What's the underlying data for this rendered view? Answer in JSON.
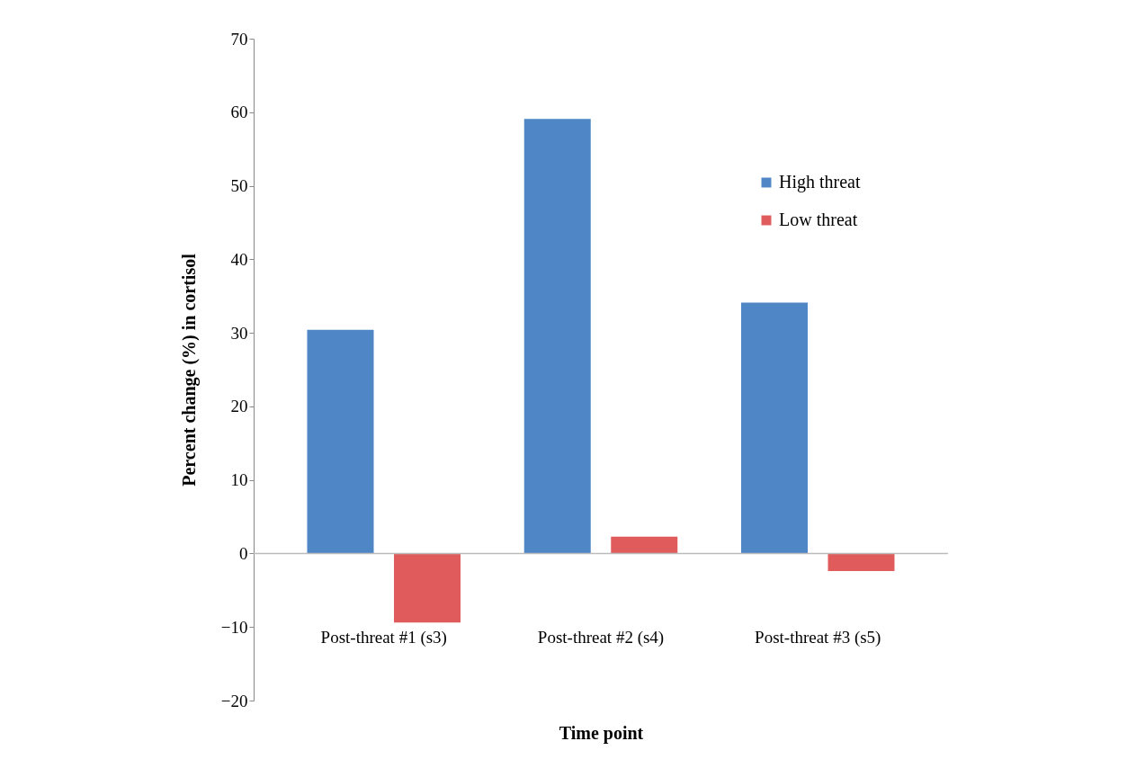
{
  "chart_data": {
    "type": "bar",
    "xlabel": "Time point",
    "ylabel": "Percent change (%) in cortisol",
    "categories": [
      "Post-threat #1 (s3)",
      "Post-threat #2 (s4)",
      "Post-threat #3 (s5)"
    ],
    "series": [
      {
        "name": "High threat",
        "color": "#4f86c6",
        "values": [
          30.4,
          59.1,
          34.1
        ]
      },
      {
        "name": "Low threat",
        "color": "#e05c5c",
        "values": [
          -9.4,
          2.3,
          -2.4
        ]
      }
    ],
    "ylim": [
      -20,
      70
    ],
    "yticks": [
      -20,
      -10,
      0,
      10,
      20,
      30,
      40,
      50,
      60,
      70
    ],
    "grid": false,
    "legend": "top right",
    "ref_lines": [
      {
        "axis": "y",
        "value": 0,
        "color": "#bbbbbb"
      }
    ]
  }
}
